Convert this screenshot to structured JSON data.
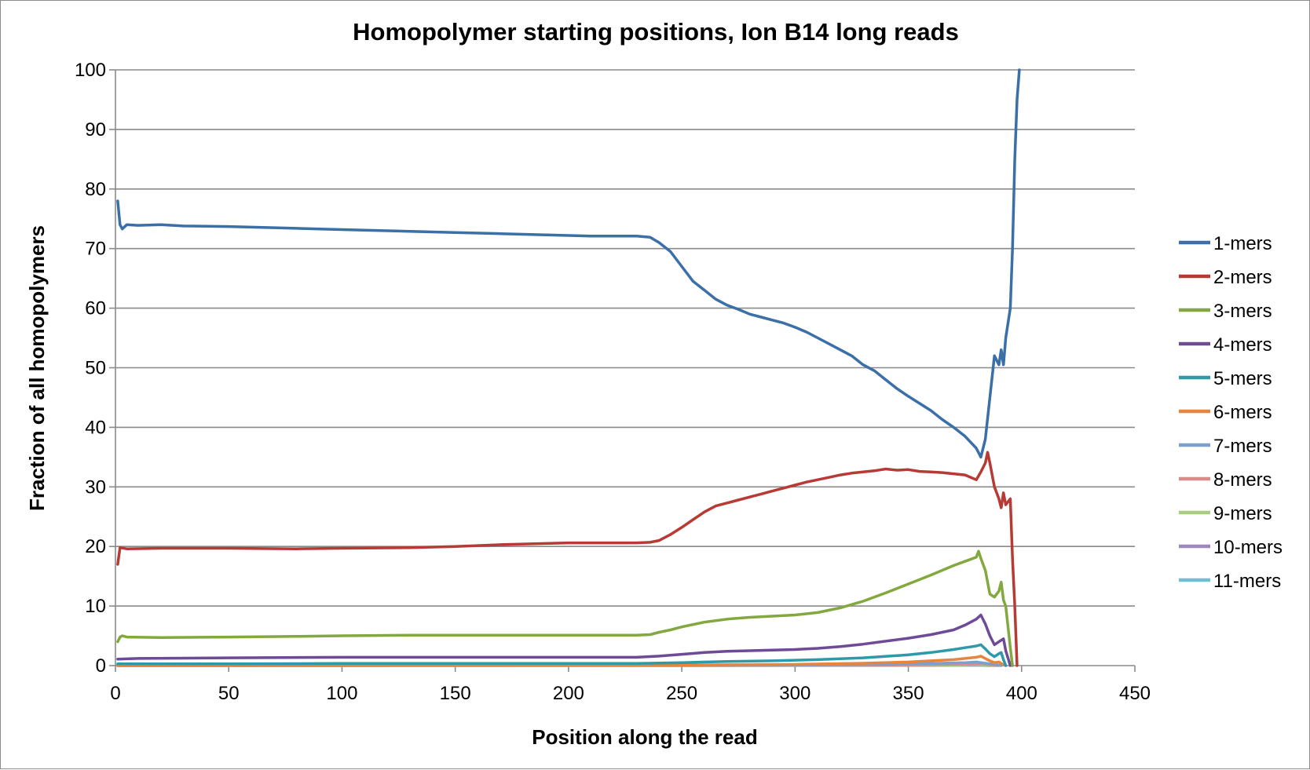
{
  "chart_data": {
    "type": "line",
    "title": "Homopolymer starting positions, Ion B14 long reads",
    "xlabel": "Position along the read",
    "ylabel": "Fraction of all homopolymers",
    "xlim": [
      0,
      450
    ],
    "ylim": [
      0,
      100
    ],
    "xticks": [
      0,
      50,
      100,
      150,
      200,
      250,
      300,
      350,
      400,
      450
    ],
    "yticks": [
      0,
      10,
      20,
      30,
      40,
      50,
      60,
      70,
      80,
      90,
      100
    ],
    "grid": "horizontal",
    "legend": "right",
    "series": [
      {
        "name": "1-mers",
        "color": "#3a6fa8",
        "points": [
          [
            1,
            78
          ],
          [
            2,
            74
          ],
          [
            3,
            73.3
          ],
          [
            5,
            74
          ],
          [
            10,
            73.9
          ],
          [
            20,
            74
          ],
          [
            30,
            73.8
          ],
          [
            50,
            73.7
          ],
          [
            70,
            73.5
          ],
          [
            90,
            73.3
          ],
          [
            110,
            73.1
          ],
          [
            130,
            72.9
          ],
          [
            150,
            72.7
          ],
          [
            170,
            72.5
          ],
          [
            190,
            72.3
          ],
          [
            210,
            72.1
          ],
          [
            230,
            72.1
          ],
          [
            236,
            71.9
          ],
          [
            240,
            71
          ],
          [
            245,
            69.5
          ],
          [
            250,
            67
          ],
          [
            255,
            64.5
          ],
          [
            260,
            63
          ],
          [
            265,
            61.5
          ],
          [
            270,
            60.5
          ],
          [
            275,
            59.8
          ],
          [
            280,
            59
          ],
          [
            285,
            58.5
          ],
          [
            290,
            58
          ],
          [
            295,
            57.5
          ],
          [
            300,
            56.8
          ],
          [
            305,
            56
          ],
          [
            310,
            55
          ],
          [
            315,
            54
          ],
          [
            320,
            53
          ],
          [
            325,
            52
          ],
          [
            330,
            50.5
          ],
          [
            335,
            49.5
          ],
          [
            340,
            48
          ],
          [
            345,
            46.5
          ],
          [
            350,
            45.2
          ],
          [
            355,
            44
          ],
          [
            360,
            42.8
          ],
          [
            365,
            41.3
          ],
          [
            370,
            40
          ],
          [
            375,
            38.5
          ],
          [
            380,
            36.5
          ],
          [
            382,
            35
          ],
          [
            384,
            38
          ],
          [
            386,
            45
          ],
          [
            388,
            52
          ],
          [
            390,
            50.5
          ],
          [
            391,
            53
          ],
          [
            392,
            50.5
          ],
          [
            393,
            55
          ],
          [
            395,
            60
          ],
          [
            396,
            70
          ],
          [
            397,
            85
          ],
          [
            398,
            95
          ],
          [
            399,
            100
          ]
        ]
      },
      {
        "name": "2-mers",
        "color": "#b83a35",
        "points": [
          [
            1,
            17
          ],
          [
            2,
            19.8
          ],
          [
            5,
            19.6
          ],
          [
            20,
            19.7
          ],
          [
            50,
            19.7
          ],
          [
            80,
            19.6
          ],
          [
            100,
            19.7
          ],
          [
            130,
            19.8
          ],
          [
            150,
            20
          ],
          [
            170,
            20.3
          ],
          [
            200,
            20.6
          ],
          [
            230,
            20.6
          ],
          [
            236,
            20.7
          ],
          [
            240,
            21
          ],
          [
            245,
            22
          ],
          [
            250,
            23.2
          ],
          [
            255,
            24.5
          ],
          [
            260,
            25.8
          ],
          [
            265,
            26.8
          ],
          [
            270,
            27.3
          ],
          [
            275,
            27.8
          ],
          [
            280,
            28.3
          ],
          [
            285,
            28.8
          ],
          [
            290,
            29.3
          ],
          [
            295,
            29.8
          ],
          [
            300,
            30.3
          ],
          [
            305,
            30.8
          ],
          [
            310,
            31.2
          ],
          [
            315,
            31.6
          ],
          [
            320,
            32
          ],
          [
            325,
            32.3
          ],
          [
            330,
            32.5
          ],
          [
            335,
            32.7
          ],
          [
            340,
            33
          ],
          [
            345,
            32.8
          ],
          [
            350,
            32.9
          ],
          [
            355,
            32.6
          ],
          [
            360,
            32.5
          ],
          [
            365,
            32.4
          ],
          [
            370,
            32.2
          ],
          [
            375,
            32
          ],
          [
            380,
            31.2
          ],
          [
            382,
            32.5
          ],
          [
            384,
            34
          ],
          [
            385,
            35.8
          ],
          [
            386,
            34
          ],
          [
            388,
            30
          ],
          [
            390,
            28
          ],
          [
            391,
            26.5
          ],
          [
            392,
            29
          ],
          [
            393,
            27
          ],
          [
            395,
            28
          ],
          [
            396,
            18
          ],
          [
            397,
            10
          ],
          [
            398,
            0
          ]
        ]
      },
      {
        "name": "3-mers",
        "color": "#83a83f",
        "points": [
          [
            1,
            4
          ],
          [
            2,
            4.8
          ],
          [
            3,
            5
          ],
          [
            5,
            4.8
          ],
          [
            20,
            4.7
          ],
          [
            50,
            4.8
          ],
          [
            80,
            4.9
          ],
          [
            100,
            5
          ],
          [
            130,
            5.1
          ],
          [
            150,
            5.1
          ],
          [
            170,
            5.1
          ],
          [
            200,
            5.1
          ],
          [
            230,
            5.1
          ],
          [
            236,
            5.2
          ],
          [
            240,
            5.6
          ],
          [
            245,
            6
          ],
          [
            250,
            6.5
          ],
          [
            260,
            7.3
          ],
          [
            270,
            7.8
          ],
          [
            280,
            8.1
          ],
          [
            290,
            8.3
          ],
          [
            300,
            8.5
          ],
          [
            310,
            8.9
          ],
          [
            320,
            9.7
          ],
          [
            330,
            10.8
          ],
          [
            340,
            12.2
          ],
          [
            350,
            13.7
          ],
          [
            360,
            15.2
          ],
          [
            370,
            16.8
          ],
          [
            375,
            17.5
          ],
          [
            380,
            18.2
          ],
          [
            381,
            19.2
          ],
          [
            382,
            18
          ],
          [
            384,
            16
          ],
          [
            386,
            12
          ],
          [
            388,
            11.5
          ],
          [
            390,
            12.5
          ],
          [
            391,
            14
          ],
          [
            392,
            11
          ],
          [
            393,
            10
          ],
          [
            395,
            3
          ],
          [
            396,
            0
          ]
        ]
      },
      {
        "name": "4-mers",
        "color": "#6e4a97",
        "points": [
          [
            1,
            1.1
          ],
          [
            10,
            1.2
          ],
          [
            50,
            1.3
          ],
          [
            100,
            1.4
          ],
          [
            150,
            1.4
          ],
          [
            200,
            1.4
          ],
          [
            230,
            1.4
          ],
          [
            240,
            1.6
          ],
          [
            250,
            1.9
          ],
          [
            260,
            2.2
          ],
          [
            270,
            2.4
          ],
          [
            280,
            2.5
          ],
          [
            290,
            2.6
          ],
          [
            300,
            2.7
          ],
          [
            310,
            2.9
          ],
          [
            320,
            3.2
          ],
          [
            330,
            3.6
          ],
          [
            340,
            4.1
          ],
          [
            350,
            4.6
          ],
          [
            360,
            5.2
          ],
          [
            370,
            6
          ],
          [
            375,
            6.8
          ],
          [
            380,
            7.8
          ],
          [
            382,
            8.5
          ],
          [
            384,
            7
          ],
          [
            386,
            5
          ],
          [
            388,
            3.5
          ],
          [
            390,
            4
          ],
          [
            392,
            4.5
          ],
          [
            393,
            2.5
          ],
          [
            395,
            0
          ]
        ]
      },
      {
        "name": "5-mers",
        "color": "#2e9aa9",
        "points": [
          [
            1,
            0.3
          ],
          [
            50,
            0.3
          ],
          [
            100,
            0.35
          ],
          [
            150,
            0.35
          ],
          [
            200,
            0.35
          ],
          [
            230,
            0.35
          ],
          [
            250,
            0.5
          ],
          [
            270,
            0.7
          ],
          [
            290,
            0.8
          ],
          [
            310,
            1
          ],
          [
            330,
            1.3
          ],
          [
            350,
            1.8
          ],
          [
            360,
            2.2
          ],
          [
            370,
            2.7
          ],
          [
            375,
            3
          ],
          [
            380,
            3.3
          ],
          [
            382,
            3.5
          ],
          [
            384,
            2.8
          ],
          [
            386,
            2
          ],
          [
            388,
            1.5
          ],
          [
            390,
            2
          ],
          [
            391,
            2.2
          ],
          [
            392,
            1
          ],
          [
            393,
            0
          ]
        ]
      },
      {
        "name": "6-mers",
        "color": "#e8853d",
        "points": [
          [
            1,
            0.05
          ],
          [
            200,
            0.05
          ],
          [
            250,
            0.1
          ],
          [
            300,
            0.2
          ],
          [
            330,
            0.4
          ],
          [
            350,
            0.6
          ],
          [
            360,
            0.8
          ],
          [
            370,
            1
          ],
          [
            375,
            1.2
          ],
          [
            380,
            1.4
          ],
          [
            382,
            1.6
          ],
          [
            384,
            1.2
          ],
          [
            386,
            0.8
          ],
          [
            388,
            0.5
          ],
          [
            390,
            0.6
          ],
          [
            392,
            0.1
          ],
          [
            393,
            0
          ]
        ]
      },
      {
        "name": "7-mers",
        "color": "#7b9fce",
        "points": [
          [
            1,
            0
          ],
          [
            250,
            0.05
          ],
          [
            300,
            0.1
          ],
          [
            340,
            0.2
          ],
          [
            360,
            0.35
          ],
          [
            375,
            0.5
          ],
          [
            380,
            0.6
          ],
          [
            384,
            0.4
          ],
          [
            388,
            0.2
          ],
          [
            391,
            0
          ]
        ]
      },
      {
        "name": "8-mers",
        "color": "#d88c89",
        "points": [
          [
            1,
            0
          ],
          [
            280,
            0.02
          ],
          [
            330,
            0.08
          ],
          [
            360,
            0.15
          ],
          [
            378,
            0.3
          ],
          [
            382,
            0.35
          ],
          [
            386,
            0.15
          ],
          [
            390,
            0
          ]
        ]
      },
      {
        "name": "9-mers",
        "color": "#a8cd81",
        "points": [
          [
            1,
            0
          ],
          [
            300,
            0.02
          ],
          [
            350,
            0.05
          ],
          [
            370,
            0.1
          ],
          [
            380,
            0.2
          ],
          [
            385,
            0.1
          ],
          [
            389,
            0
          ]
        ]
      },
      {
        "name": "10-mers",
        "color": "#9d87be",
        "points": [
          [
            1,
            0
          ],
          [
            320,
            0.02
          ],
          [
            360,
            0.05
          ],
          [
            378,
            0.1
          ],
          [
            383,
            0.08
          ],
          [
            388,
            0
          ]
        ]
      },
      {
        "name": "11-mers",
        "color": "#6dbfd1",
        "points": [
          [
            1,
            0
          ],
          [
            330,
            0.01
          ],
          [
            365,
            0.03
          ],
          [
            380,
            0.06
          ],
          [
            386,
            0
          ]
        ]
      }
    ]
  }
}
